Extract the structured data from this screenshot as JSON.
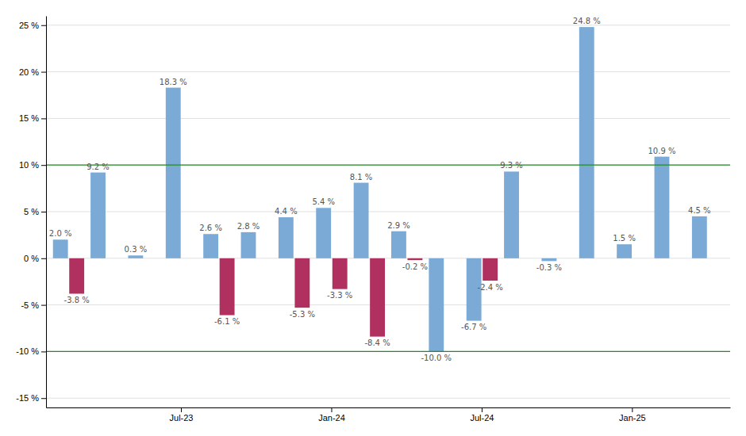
{
  "chart_data": {
    "type": "bar",
    "categories": [
      null,
      null,
      null,
      "Jul-23",
      null,
      null,
      null,
      "Jan-24",
      null,
      null,
      null,
      "Jul-24",
      null,
      null,
      null,
      "Jan-25",
      null,
      null
    ],
    "series": [
      {
        "color": "#7BAAD6",
        "values": [
          2.0,
          9.2,
          0.3,
          18.3,
          2.6,
          2.8,
          4.4,
          5.4,
          8.1,
          2.9,
          -10.0,
          -6.7,
          9.3,
          -0.3,
          24.8,
          1.5,
          10.9,
          4.5
        ],
        "value_labels": [
          "2.0 %",
          "9.2 %",
          "0.3 %",
          "18.3 %",
          "2.6 %",
          "2.8 %",
          "4.4 %",
          "5.4 %",
          "8.1 %",
          "2.9 %",
          "-10.0 %",
          "-6.7 %",
          "9.3 %",
          "-0.3 %",
          "24.8 %",
          "1.5 %",
          "10.9 %",
          "4.5 %"
        ]
      },
      {
        "color": "#B03060",
        "values": [
          -3.8,
          null,
          null,
          null,
          -6.1,
          null,
          -5.3,
          -3.3,
          -8.4,
          -0.2,
          null,
          -2.4,
          null,
          null,
          null,
          null,
          null,
          null
        ],
        "value_labels": [
          "-3.8 %",
          null,
          null,
          null,
          "-6.1 %",
          null,
          "-5.3 %",
          "-3.3 %",
          "-8.4 %",
          "-0.2 %",
          null,
          "-2.4 %",
          null,
          null,
          null,
          null,
          null,
          null
        ]
      }
    ],
    "ylim": [
      -16,
      26
    ],
    "yticks": [
      {
        "value": -15,
        "label": "-15 %"
      },
      {
        "value": -10,
        "label": "-10 %"
      },
      {
        "value": -5,
        "label": "-5 %"
      },
      {
        "value": 0,
        "label": "0 %"
      },
      {
        "value": 5,
        "label": "5 %"
      },
      {
        "value": 10,
        "label": "10 %"
      },
      {
        "value": 15,
        "label": "15 %"
      },
      {
        "value": 20,
        "label": "20 %"
      },
      {
        "value": 25,
        "label": "25 %"
      }
    ],
    "grid": true,
    "data_labels": true,
    "reference_lines": [
      {
        "value": 10,
        "color": "#228B22"
      },
      {
        "value": -10,
        "color": "#228B22"
      }
    ]
  }
}
